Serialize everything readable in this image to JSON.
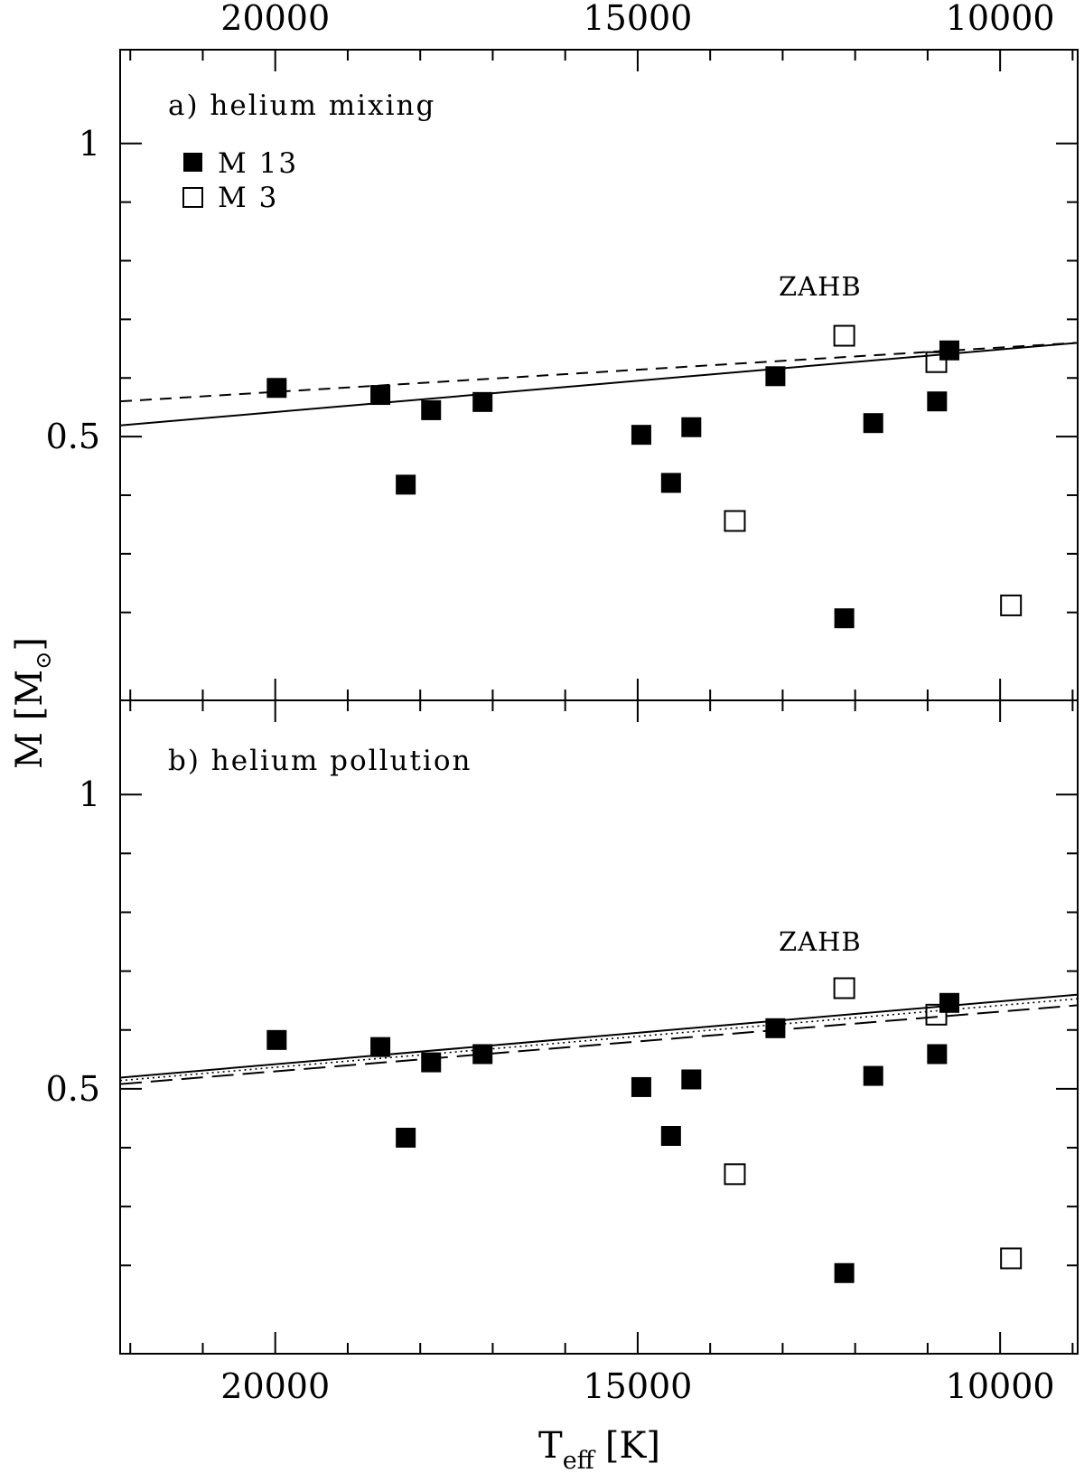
{
  "chart_data": {
    "type": "scatter",
    "xlabel": "T",
    "xlabel_sub": "eff",
    "xlabel_unit": "[K]",
    "ylabel": "M [M",
    "ylabel_symbol": "⊙",
    "ylabel_close": "]",
    "xlim": [
      22140,
      8930
    ],
    "x_reversed": true,
    "x_ticks": [
      20000,
      15000,
      10000
    ],
    "x_tick_labels": [
      "20000",
      "15000",
      "10000"
    ],
    "top_axis_tick_labels": [
      "20000",
      "15000",
      "10000"
    ],
    "x_minor_step": 1000,
    "ylim": [
      0.05,
      1.16
    ],
    "y_ticks": [
      0.5,
      1
    ],
    "y_tick_labels": [
      "0.5",
      "1"
    ],
    "y_minor_ticks": [
      0.2,
      0.3,
      0.4,
      0.6,
      0.7,
      0.8,
      0.9
    ],
    "legend": {
      "position": "top-left",
      "entries": [
        {
          "label": "M 13",
          "marker": "filled-square"
        },
        {
          "label": "M 3",
          "marker": "open-square"
        }
      ]
    },
    "panels": [
      {
        "label": "a) helium mixing",
        "annotation": "ZAHB",
        "series": [
          {
            "name": "M 13",
            "marker": "filled-square",
            "x": [
              19980,
              18550,
              18200,
              17850,
              17140,
              14950,
              14540,
              14260,
              13100,
              11750,
              10870,
              10700,
              12150
            ],
            "y": [
              0.583,
              0.571,
              0.418,
              0.545,
              0.559,
              0.503,
              0.421,
              0.516,
              0.603,
              0.523,
              0.56,
              0.647,
              0.19
            ]
          },
          {
            "name": "M 3",
            "marker": "open-square",
            "x": [
              13660,
              12150,
              10880,
              9850
            ],
            "y": [
              0.356,
              0.672,
              0.627,
              0.212
            ]
          }
        ],
        "lines": [
          {
            "name": "ZAHB solid",
            "style": "solid",
            "x": [
              22140,
              8930
            ],
            "y": [
              0.519,
              0.66
            ]
          },
          {
            "name": "ZAHB dashed",
            "style": "dashed",
            "x": [
              22140,
              8930
            ],
            "y": [
              0.56,
              0.66
            ]
          }
        ]
      },
      {
        "label": "b) helium pollution",
        "annotation": "ZAHB",
        "series": [
          {
            "name": "M 13",
            "marker": "filled-square",
            "x": [
              19980,
              18550,
              18200,
              17850,
              17140,
              14950,
              14540,
              14260,
              13100,
              11750,
              10870,
              10700,
              12150
            ],
            "y": [
              0.583,
              0.571,
              0.417,
              0.545,
              0.559,
              0.503,
              0.42,
              0.516,
              0.603,
              0.522,
              0.559,
              0.646,
              0.187
            ]
          },
          {
            "name": "M 3",
            "marker": "open-square",
            "x": [
              13660,
              12150,
              10880,
              9850
            ],
            "y": [
              0.355,
              0.671,
              0.626,
              0.212
            ]
          }
        ],
        "lines": [
          {
            "name": "ZAHB solid",
            "style": "solid",
            "x": [
              22140,
              8930
            ],
            "y": [
              0.519,
              0.66
            ]
          },
          {
            "name": "ZAHB dotted",
            "style": "dotted",
            "x": [
              22140,
              8930
            ],
            "y": [
              0.514,
              0.653
            ]
          },
          {
            "name": "ZAHB long-dashed",
            "style": "long-dashed",
            "x": [
              22140,
              8930
            ],
            "y": [
              0.508,
              0.642
            ]
          }
        ]
      }
    ]
  }
}
